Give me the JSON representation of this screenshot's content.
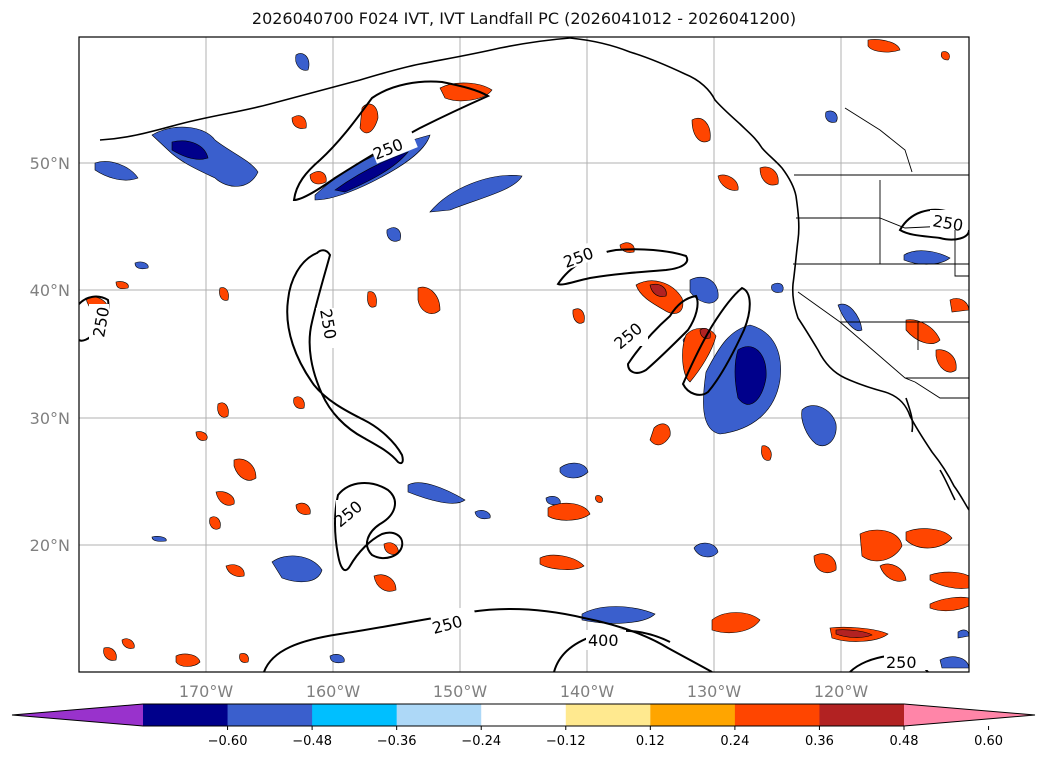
{
  "title": "2026040700 F024 IVT, IVT Landfall PC (2026041012 - 2026041200)",
  "axes": {
    "lon_labels": [
      "170°W",
      "160°W",
      "150°W",
      "140°W",
      "130°W",
      "120°W"
    ],
    "lat_labels": [
      "50°N",
      "40°N",
      "30°N",
      "20°N"
    ]
  },
  "contour_labels": [
    "250",
    "250",
    "250",
    "250",
    "250",
    "250",
    "250",
    "250",
    "400",
    "250"
  ],
  "colorbar": {
    "ticks": [
      "−0.60",
      "−0.48",
      "−0.36",
      "−0.24",
      "−0.12",
      "0.12",
      "0.24",
      "0.36",
      "0.48",
      "0.60"
    ],
    "colors": [
      "#9932cc",
      "#00008b",
      "#3a5fcd",
      "#00bfff",
      "#add8f7",
      "#ffffff",
      "#ffe98f",
      "#ffa500",
      "#ff4500",
      "#b22222",
      "#ff85a8"
    ]
  }
}
